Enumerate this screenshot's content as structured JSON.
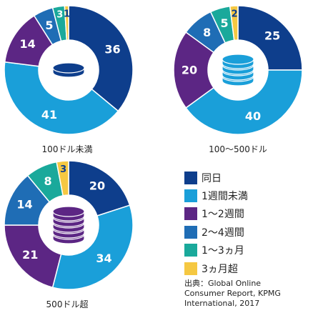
{
  "chart_data": [
    {
      "type": "pie",
      "label": "100ドル未満",
      "categories": [
        "同日",
        "1週間未満",
        "1〜2週間",
        "2〜4週間",
        "1〜3ヵ月",
        "3ヵ月超"
      ],
      "values": [
        36,
        41,
        14,
        5,
        3,
        1
      ],
      "icon": "coin-stack-icon",
      "coins": 1,
      "icon_color": "#0e3e8c"
    },
    {
      "type": "pie",
      "label": "100〜500ドル",
      "categories": [
        "同日",
        "1週間未満",
        "1〜2週間",
        "2〜4週間",
        "1〜3ヵ月",
        "3ヵ月超"
      ],
      "values": [
        25,
        40,
        20,
        8,
        5,
        2
      ],
      "icon": "coin-stack-icon",
      "coins": 4,
      "icon_color": "#1a9fd9"
    },
    {
      "type": "pie",
      "label": "500ドル超",
      "categories": [
        "同日",
        "1週間未満",
        "1〜2週間",
        "2〜4週間",
        "1〜3ヵ月",
        "3ヵ月超"
      ],
      "values": [
        20,
        34,
        21,
        14,
        8,
        3
      ],
      "icon": "coin-stack-icon",
      "coins": 5,
      "icon_color": "#5c2684"
    }
  ],
  "legend": {
    "items": [
      {
        "label": "同日",
        "color": "#0e3e8c"
      },
      {
        "label": "1週間未満",
        "color": "#1a9fd9"
      },
      {
        "label": "1〜2週間",
        "color": "#5c2684"
      },
      {
        "label": "2〜4週間",
        "color": "#1f6db5"
      },
      {
        "label": "1〜3ヵ月",
        "color": "#1aa99b"
      },
      {
        "label": "3ヵ月超",
        "color": "#f5c842"
      }
    ]
  },
  "source": {
    "line1": "出典：Global Online",
    "line2": "Consumer Report, KPMG",
    "line3": "International, 2017"
  },
  "colors": {
    "segments": [
      "#0e3e8c",
      "#1a9fd9",
      "#5c2684",
      "#1f6db5",
      "#1aa99b",
      "#f5c842"
    ],
    "inner_hole": "#ffffff",
    "value_text": "#ffffff",
    "small_value_text": "#0e3e8c"
  }
}
